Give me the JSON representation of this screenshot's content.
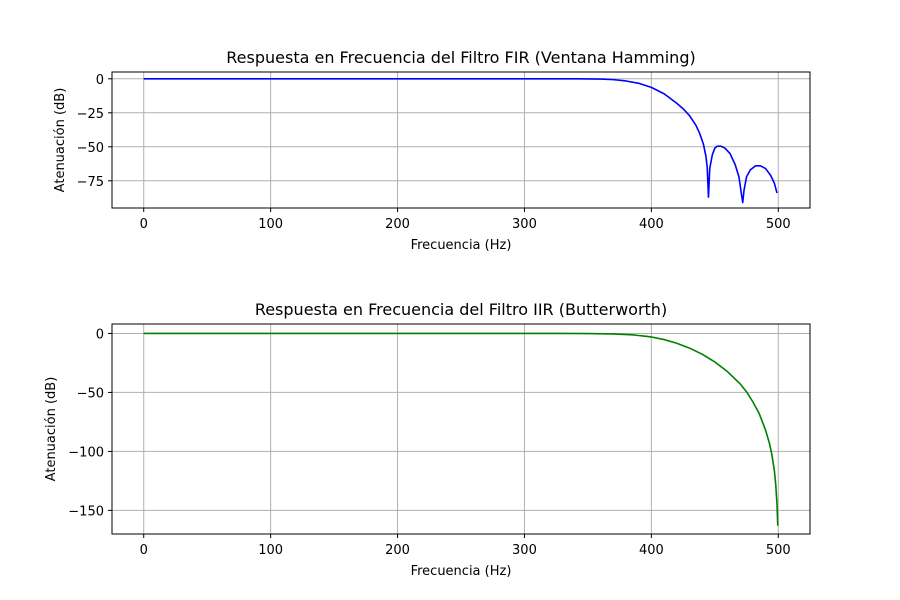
{
  "chart_data": [
    {
      "type": "line",
      "title": "Respuesta en Frecuencia del Filtro FIR (Ventana Hamming)",
      "xlabel": "Frecuencia (Hz)",
      "ylabel": "Atenuación (dB)",
      "xlim": [
        -25,
        525
      ],
      "ylim": [
        -95,
        5
      ],
      "xticks": [
        0,
        100,
        200,
        300,
        400,
        500
      ],
      "yticks": [
        0,
        -25,
        -50,
        -75
      ],
      "ytick_labels": [
        "0",
        "−25",
        "−50",
        "−75"
      ],
      "xtick_labels": [
        "0",
        "100",
        "200",
        "300",
        "400",
        "500"
      ],
      "grid": true,
      "color": "#0000ff",
      "series": [
        {
          "x": [
            0,
            50,
            100,
            150,
            200,
            250,
            300,
            340,
            360,
            370,
            380,
            390,
            400,
            410,
            420,
            425,
            430,
            435,
            438,
            441,
            443,
            444,
            445,
            446,
            448,
            450,
            452,
            455,
            458,
            462,
            466,
            469,
            471,
            472,
            473,
            475,
            478,
            482,
            486,
            490,
            494,
            497,
            499
          ],
          "y": [
            0,
            0,
            0,
            0,
            0,
            0,
            0,
            0,
            -0.2,
            -0.6,
            -1.6,
            -3.3,
            -6.3,
            -11,
            -18,
            -22,
            -27,
            -34,
            -40,
            -48,
            -57,
            -65,
            -87,
            -66,
            -56,
            -51,
            -49.5,
            -49.6,
            -51,
            -55,
            -63,
            -72,
            -85,
            -91,
            -82,
            -72,
            -67,
            -64,
            -64,
            -66,
            -71,
            -77,
            -84
          ]
        }
      ]
    },
    {
      "type": "line",
      "title": "Respuesta en Frecuencia del Filtro IIR (Butterworth)",
      "xlabel": "Frecuencia (Hz)",
      "ylabel": "Atenuación (dB)",
      "xlim": [
        -25,
        525
      ],
      "ylim": [
        -170,
        8
      ],
      "xticks": [
        0,
        100,
        200,
        300,
        400,
        500
      ],
      "yticks": [
        0,
        -50,
        -100,
        -150
      ],
      "ytick_labels": [
        "0",
        "−50",
        "−100",
        "−150"
      ],
      "xtick_labels": [
        "0",
        "100",
        "200",
        "300",
        "400",
        "500"
      ],
      "grid": true,
      "color": "#008000",
      "series": [
        {
          "x": [
            0,
            50,
            100,
            150,
            200,
            250,
            300,
            330,
            350,
            370,
            385,
            395,
            400,
            410,
            420,
            430,
            440,
            450,
            460,
            470,
            475,
            480,
            485,
            490,
            493,
            495,
            497,
            498,
            499,
            499.6
          ],
          "y": [
            0,
            0,
            0,
            0,
            0,
            0,
            0,
            0,
            -0.1,
            -0.4,
            -1.2,
            -2.3,
            -3.0,
            -5.2,
            -8.3,
            -12.4,
            -17.6,
            -24.2,
            -32.4,
            -42.8,
            -49.5,
            -58,
            -68,
            -82,
            -93,
            -103,
            -117,
            -128,
            -145,
            -163
          ]
        }
      ]
    }
  ]
}
